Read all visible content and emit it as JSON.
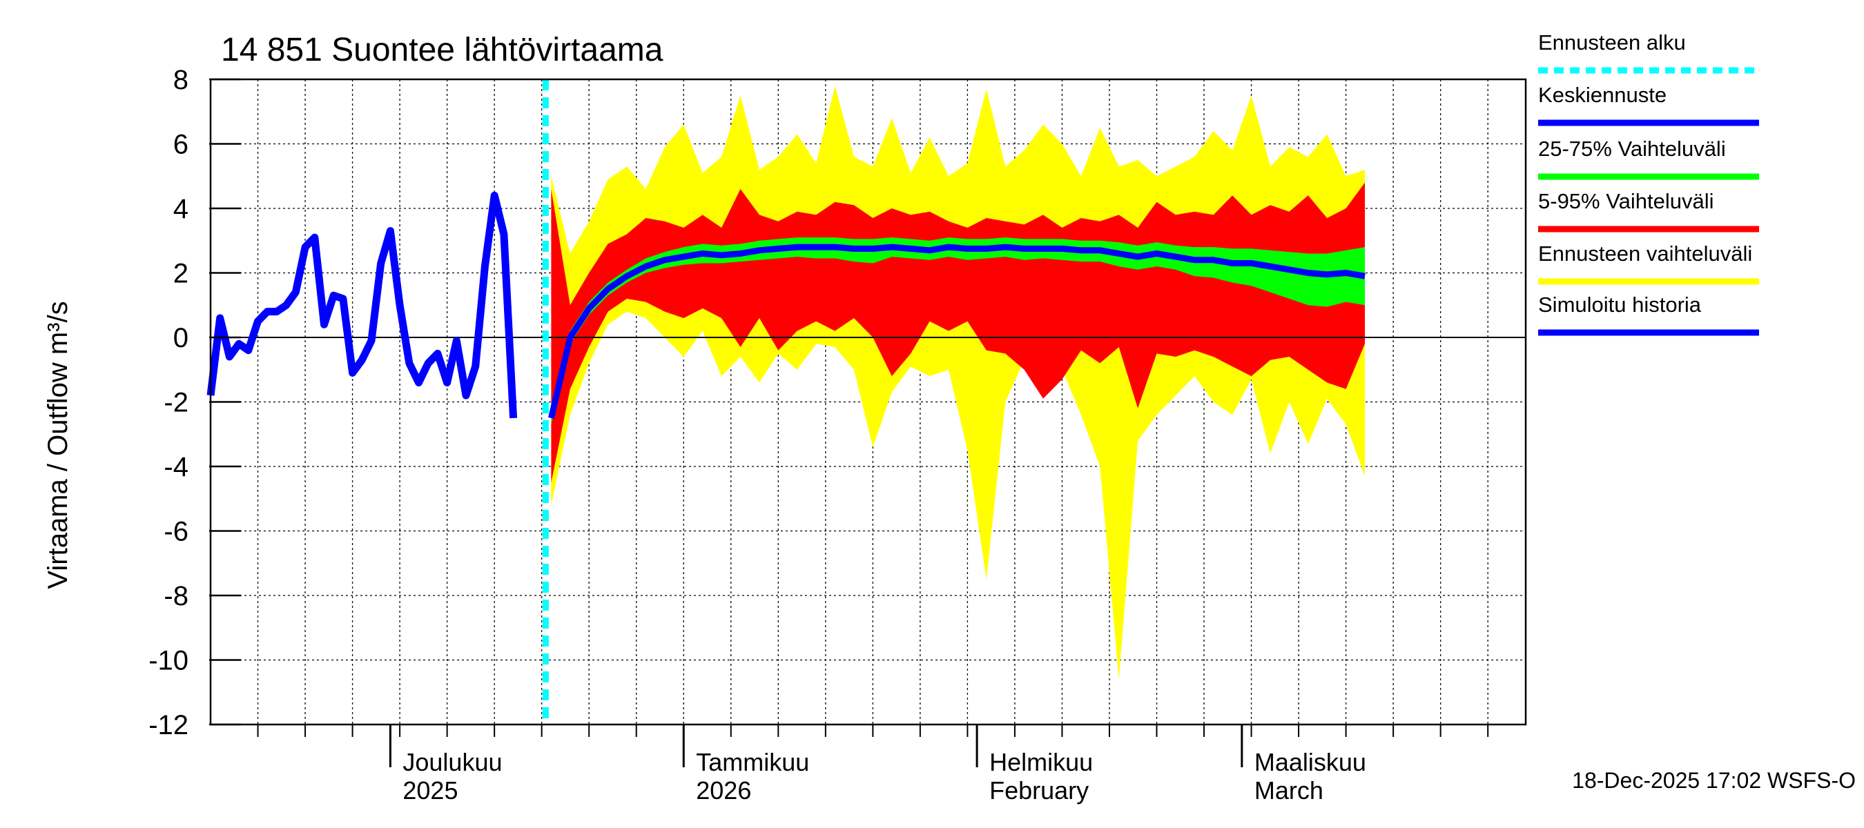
{
  "chart_data": {
    "type": "area",
    "title": "14 851 Suontee lähtövirtaama",
    "ylabel": "Virtaama / Outflow    m³/s",
    "ylim": [
      -12,
      8
    ],
    "yticks": [
      8,
      6,
      4,
      2,
      0,
      -2,
      -4,
      -6,
      -8,
      -10,
      -12
    ],
    "x_start": "2025-11-12",
    "x_end": "2026-03-31",
    "forecast_start": "2025-12-18",
    "month_labels": [
      {
        "date": "2025-12-01",
        "line1": "Joulukuu",
        "line2": "2025"
      },
      {
        "date": "2026-01-01",
        "line1": "Tammikuu",
        "line2": "2026"
      },
      {
        "date": "2026-02-01",
        "line1": "Helmikuu",
        "line2": "February"
      },
      {
        "date": "2026-03-01",
        "line1": "Maaliskuu",
        "line2": "March"
      }
    ],
    "legend": [
      {
        "label": "Ennusteen alku",
        "color": "#00ffff",
        "dashed": true
      },
      {
        "label": "Keskiennuste",
        "color": "#0000ff"
      },
      {
        "label": "25-75% Vaihteluväli",
        "color": "#00ff00"
      },
      {
        "label": "5-95% Vaihteluväli",
        "color": "#ff0000"
      },
      {
        "label": "Ennusteen vaihteluväli",
        "color": "#ffff00"
      },
      {
        "label": "Simuloitu historia",
        "color": "#0000ff"
      }
    ],
    "history": {
      "start": "2025-11-12",
      "step_days": 1,
      "values": [
        -1.8,
        0.6,
        -0.6,
        -0.2,
        -0.4,
        0.5,
        0.8,
        0.8,
        1.0,
        1.4,
        2.8,
        3.1,
        0.4,
        1.3,
        1.2,
        -1.1,
        -0.7,
        -0.1,
        2.3,
        3.3,
        1.0,
        -0.8,
        -1.4,
        -0.8,
        -0.5,
        -1.4,
        -0.1,
        -1.8,
        -0.9,
        2.2,
        4.4,
        3.2,
        -2.5
      ]
    },
    "forecast": {
      "start": "2025-12-18",
      "step_days": 2,
      "median": [
        -2.5,
        0.0,
        0.9,
        1.5,
        1.9,
        2.2,
        2.4,
        2.5,
        2.6,
        2.55,
        2.6,
        2.7,
        2.75,
        2.8,
        2.8,
        2.8,
        2.75,
        2.75,
        2.8,
        2.75,
        2.7,
        2.8,
        2.75,
        2.75,
        2.8,
        2.75,
        2.75,
        2.75,
        2.7,
        2.7,
        2.6,
        2.5,
        2.6,
        2.5,
        2.4,
        2.4,
        2.3,
        2.3,
        2.2,
        2.1,
        2.0,
        1.95,
        2.0,
        1.9
      ],
      "p25": [
        -2.7,
        -0.2,
        0.7,
        1.3,
        1.7,
        2.0,
        2.15,
        2.25,
        2.3,
        2.3,
        2.35,
        2.4,
        2.45,
        2.5,
        2.45,
        2.45,
        2.35,
        2.3,
        2.5,
        2.45,
        2.4,
        2.5,
        2.4,
        2.45,
        2.5,
        2.4,
        2.45,
        2.4,
        2.35,
        2.35,
        2.2,
        2.1,
        2.2,
        2.1,
        1.9,
        1.85,
        1.7,
        1.6,
        1.4,
        1.2,
        1.0,
        0.95,
        1.1,
        1.0
      ],
      "p75": [
        -2.3,
        0.2,
        1.1,
        1.7,
        2.1,
        2.45,
        2.65,
        2.8,
        2.9,
        2.85,
        2.9,
        3.0,
        3.05,
        3.1,
        3.1,
        3.1,
        3.05,
        3.05,
        3.1,
        3.05,
        3.0,
        3.1,
        3.05,
        3.05,
        3.1,
        3.05,
        3.05,
        3.05,
        3.0,
        3.0,
        2.95,
        2.85,
        2.95,
        2.85,
        2.8,
        2.8,
        2.75,
        2.75,
        2.7,
        2.65,
        2.6,
        2.6,
        2.7,
        2.8
      ],
      "p05": [
        -4.5,
        -1.6,
        -0.3,
        0.8,
        1.2,
        1.1,
        0.8,
        0.6,
        0.9,
        0.6,
        -0.3,
        0.6,
        -0.4,
        0.2,
        0.5,
        0.2,
        0.6,
        0.0,
        -1.2,
        -0.5,
        0.5,
        0.2,
        0.5,
        -0.4,
        -0.5,
        -1.0,
        -1.9,
        -1.3,
        -0.4,
        -0.8,
        -0.3,
        -2.2,
        -0.5,
        -0.6,
        -0.4,
        -0.6,
        -0.9,
        -1.2,
        -0.7,
        -0.6,
        -1.0,
        -1.4,
        -1.6,
        -0.2
      ],
      "p95": [
        4.6,
        1.0,
        2.0,
        2.9,
        3.2,
        3.7,
        3.6,
        3.4,
        3.8,
        3.4,
        4.6,
        3.8,
        3.6,
        3.9,
        3.8,
        4.2,
        4.1,
        3.7,
        4.0,
        3.8,
        3.9,
        3.6,
        3.4,
        3.7,
        3.6,
        3.5,
        3.8,
        3.4,
        3.7,
        3.6,
        3.8,
        3.4,
        4.2,
        3.8,
        3.9,
        3.8,
        4.4,
        3.8,
        4.1,
        3.9,
        4.4,
        3.7,
        4.0,
        4.8
      ],
      "min": [
        -5.2,
        -2.4,
        -0.8,
        0.4,
        0.8,
        0.6,
        0.0,
        -0.6,
        0.2,
        -1.2,
        -0.6,
        -1.4,
        -0.5,
        -1.0,
        -0.2,
        -0.3,
        -1.0,
        -3.4,
        -1.7,
        -0.9,
        -1.2,
        -1.0,
        -3.5,
        -7.5,
        -2.0,
        -0.7,
        -1.6,
        -1.0,
        -2.4,
        -4.0,
        -10.6,
        -3.2,
        -2.4,
        -1.8,
        -1.2,
        -2.0,
        -2.4,
        -1.3,
        -3.6,
        -2.0,
        -3.3,
        -1.9,
        -2.7,
        -4.3
      ],
      "max": [
        5.0,
        2.6,
        3.6,
        4.9,
        5.3,
        4.6,
        5.9,
        6.6,
        5.1,
        5.6,
        7.5,
        5.2,
        5.6,
        6.3,
        5.4,
        7.8,
        5.6,
        5.3,
        6.8,
        5.1,
        6.2,
        5.0,
        5.4,
        7.7,
        5.3,
        5.8,
        6.6,
        6.0,
        5.0,
        6.5,
        5.3,
        5.5,
        5.0,
        5.3,
        5.6,
        6.4,
        5.8,
        7.5,
        5.3,
        5.9,
        5.6,
        6.3,
        5.0,
        5.2
      ]
    },
    "grid": true
  },
  "footer": "18-Dec-2025 17:02 WSFS-O"
}
